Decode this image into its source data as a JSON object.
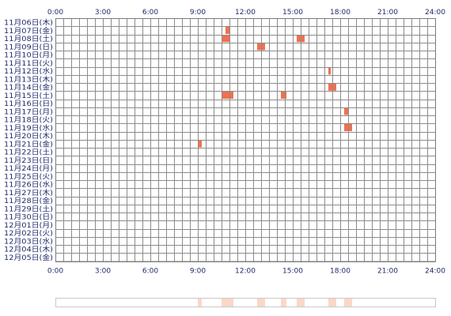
{
  "chart_data": {
    "type": "heatmap",
    "x_ticks": [
      "0:00",
      "3:00",
      "6:00",
      "9:00",
      "12:00",
      "15:00",
      "18:00",
      "21:00",
      "24:00"
    ],
    "xlim": [
      0,
      24
    ],
    "grid": true,
    "rows": [
      "11月06日(木)",
      "11月07日(金)",
      "11月08日(土)",
      "11月09日(日)",
      "11月10日(月)",
      "11月11日(火)",
      "11月12日(水)",
      "11月13日(木)",
      "11月14日(金)",
      "11月15日(土)",
      "11月16日(日)",
      "11月17日(月)",
      "11月18日(火)",
      "11月19日(水)",
      "11月20日(木)",
      "11月21日(金)",
      "11月22日(土)",
      "11月23日(日)",
      "11月24日(月)",
      "11月25日(火)",
      "11月26日(水)",
      "11月27日(木)",
      "11月28日(金)",
      "11月29日(土)",
      "11月30日(日)",
      "12月01日(月)",
      "12月02日(火)",
      "12月03日(水)",
      "12月04日(木)",
      "12月05日(金)"
    ],
    "events": [
      {
        "row": 1,
        "start": 10.75,
        "end": 11.0
      },
      {
        "row": 2,
        "start": 10.5,
        "end": 11.0
      },
      {
        "row": 2,
        "start": 15.25,
        "end": 15.75
      },
      {
        "row": 3,
        "start": 12.75,
        "end": 13.25
      },
      {
        "row": 6,
        "start": 17.25,
        "end": 17.4
      },
      {
        "row": 8,
        "start": 17.25,
        "end": 17.75
      },
      {
        "row": 9,
        "start": 10.5,
        "end": 11.25
      },
      {
        "row": 9,
        "start": 14.25,
        "end": 14.6
      },
      {
        "row": 11,
        "start": 18.25,
        "end": 18.5
      },
      {
        "row": 13,
        "start": 18.25,
        "end": 18.75
      },
      {
        "row": 15,
        "start": 9.0,
        "end": 9.25
      }
    ],
    "colors": {
      "grid": "#8c8c8c",
      "border": "#7a7a7a",
      "event": "#f07050",
      "summary": "#fbd7c8",
      "summary_border": "#c8c8c8",
      "text": "#1f2a6b"
    }
  }
}
